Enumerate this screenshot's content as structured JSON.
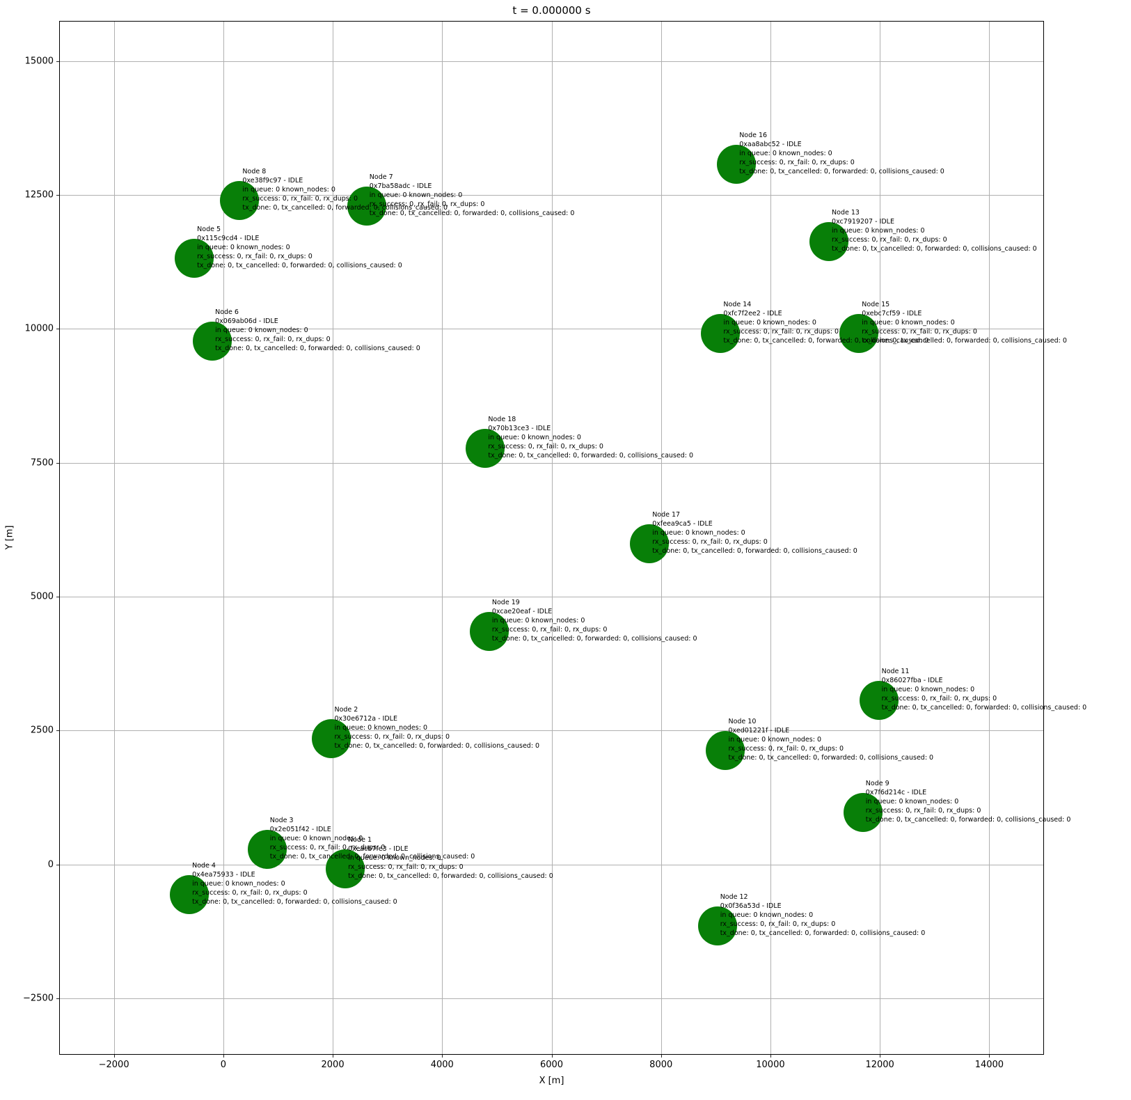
{
  "chart_data": {
    "type": "scatter",
    "title": "t = 0.000000 s",
    "xlabel": "X [m]",
    "ylabel": "Y [m]",
    "xlim": [
      -3000,
      15000
    ],
    "ylim": [
      -3550,
      15750
    ],
    "xticks": [
      -2000,
      0,
      2000,
      4000,
      6000,
      8000,
      10000,
      12000,
      14000
    ],
    "yticks": [
      -2500,
      0,
      2500,
      5000,
      7500,
      10000,
      12500,
      15000
    ],
    "grid": true,
    "legend": false,
    "marker": {
      "color": "#087f08",
      "radius_px": 28
    },
    "nodes": [
      {
        "name": "Node 1",
        "id": "0xeacb7fe3",
        "status": "IDLE",
        "x": 2230,
        "y": -80,
        "lines": [
          "Node 1",
          "0xeacb7fe3 - IDLE",
          "in queue: 0 known_nodes: 0",
          "rx_success: 0, rx_fail: 0, rx_dups: 0",
          "tx_done: 0, tx_cancelled: 0, forwarded: 0, collisions_caused: 0"
        ]
      },
      {
        "name": "Node 2",
        "id": "0x30e6712a",
        "status": "IDLE",
        "x": 1980,
        "y": 2350,
        "lines": [
          "Node 2",
          "0x30e6712a - IDLE",
          "in queue: 0 known_nodes: 0",
          "rx_success: 0, rx_fail: 0, rx_dups: 0",
          "tx_done: 0, tx_cancelled: 0, forwarded: 0, collisions_caused: 0"
        ]
      },
      {
        "name": "Node 3",
        "id": "0x2e051f42",
        "status": "IDLE",
        "x": 800,
        "y": 290,
        "lines": [
          "Node 3",
          "0x2e051f42 - IDLE",
          "in queue: 0 known_nodes: 0",
          "rx_success: 0, rx_fail: 0, rx_dups: 0",
          "tx_done: 0, tx_cancelled: 0, forwarded: 0, collisions_caused: 0"
        ]
      },
      {
        "name": "Node 4",
        "id": "0x4ea75933",
        "status": "IDLE",
        "x": -620,
        "y": -560,
        "lines": [
          "Node 4",
          "0x4ea75933 - IDLE",
          "in queue: 0 known_nodes: 0",
          "rx_success: 0, rx_fail: 0, rx_dups: 0",
          "tx_done: 0, tx_cancelled: 0, forwarded: 0, collisions_caused: 0"
        ]
      },
      {
        "name": "Node 5",
        "id": "0x115c9cd4",
        "status": "IDLE",
        "x": -530,
        "y": 11320,
        "lines": [
          "Node 5",
          "0x115c9cd4 - IDLE",
          "in queue: 0 known_nodes: 0",
          "rx_success: 0, rx_fail: 0, rx_dups: 0",
          "tx_done: 0, tx_cancelled: 0, forwarded: 0, collisions_caused: 0"
        ]
      },
      {
        "name": "Node 6",
        "id": "0x069ab06d",
        "status": "IDLE",
        "x": -200,
        "y": 9770,
        "lines": [
          "Node 6",
          "0x069ab06d - IDLE",
          "in queue: 0 known_nodes: 0",
          "rx_success: 0, rx_fail: 0, rx_dups: 0",
          "tx_done: 0, tx_cancelled: 0, forwarded: 0, collisions_caused: 0"
        ]
      },
      {
        "name": "Node 7",
        "id": "0x7ba58adc",
        "status": "IDLE",
        "x": 2620,
        "y": 12290,
        "lines": [
          "Node 7",
          "0x7ba58adc - IDLE",
          "in queue: 0 known_nodes: 0",
          "rx_success: 0, rx_fail: 0, rx_dups: 0",
          "tx_done: 0, tx_cancelled: 0, forwarded: 0, collisions_caused: 0"
        ]
      },
      {
        "name": "Node 8",
        "id": "0xe38f9c97",
        "status": "IDLE",
        "x": 300,
        "y": 12400,
        "lines": [
          "Node 8",
          "0xe38f9c97 - IDLE",
          "in queue: 0 known_nodes: 0",
          "rx_success: 0, rx_fail: 0, rx_dups: 0",
          "tx_done: 0, tx_cancelled: 0, forwarded: 0, collisions_caused: 0"
        ]
      },
      {
        "name": "Node 9",
        "id": "0x7f6d214c",
        "status": "IDLE",
        "x": 11690,
        "y": 970,
        "lines": [
          "Node 9",
          "0x7f6d214c - IDLE",
          "in queue: 0 known_nodes: 0",
          "rx_success: 0, rx_fail: 0, rx_dups: 0",
          "tx_done: 0, tx_cancelled: 0, forwarded: 0, collisions_caused: 0"
        ]
      },
      {
        "name": "Node 10",
        "id": "0xed01221f",
        "status": "IDLE",
        "x": 9180,
        "y": 2130,
        "lines": [
          "Node 10",
          "0xed01221f - IDLE",
          "in queue: 0 known_nodes: 0",
          "rx_success: 0, rx_fail: 0, rx_dups: 0",
          "tx_done: 0, tx_cancelled: 0, forwarded: 0, collisions_caused: 0"
        ]
      },
      {
        "name": "Node 11",
        "id": "0x86027fba",
        "status": "IDLE",
        "x": 11980,
        "y": 3070,
        "lines": [
          "Node 11",
          "0x86027fba - IDLE",
          "in queue: 0 known_nodes: 0",
          "rx_success: 0, rx_fail: 0, rx_dups: 0",
          "tx_done: 0, tx_cancelled: 0, forwarded: 0, collisions_caused: 0"
        ]
      },
      {
        "name": "Node 12",
        "id": "0x0f36a53d",
        "status": "IDLE",
        "x": 9030,
        "y": -1140,
        "lines": [
          "Node 12",
          "0x0f36a53d - IDLE",
          "in queue: 0 known_nodes: 0",
          "rx_success: 0, rx_fail: 0, rx_dups: 0",
          "tx_done: 0, tx_cancelled: 0, forwarded: 0, collisions_caused: 0"
        ]
      },
      {
        "name": "Node 13",
        "id": "0xc7919207",
        "status": "IDLE",
        "x": 11070,
        "y": 11630,
        "lines": [
          "Node 13",
          "0xc7919207 - IDLE",
          "in queue: 0 known_nodes: 0",
          "rx_success: 0, rx_fail: 0, rx_dups: 0",
          "tx_done: 0, tx_cancelled: 0, forwarded: 0, collisions_caused: 0"
        ]
      },
      {
        "name": "Node 14",
        "id": "0xfc7f2ee2",
        "status": "IDLE",
        "x": 9090,
        "y": 9920,
        "lines": [
          "Node 14",
          "0xfc7f2ee2 - IDLE",
          "in queue: 0 known_nodes: 0",
          "rx_success: 0, rx_fail: 0, rx_dups: 0",
          "tx_done: 0, tx_cancelled: 0, forwarded: 0, collisions_caused: 0"
        ]
      },
      {
        "name": "Node 15",
        "id": "0xebc7cf59",
        "status": "IDLE",
        "x": 11620,
        "y": 9920,
        "lines": [
          "Node 15",
          "0xebc7cf59 - IDLE",
          "in queue: 0 known_nodes: 0",
          "rx_success: 0, rx_fail: 0, rx_dups: 0",
          "tx_done: 0, tx_cancelled: 0, forwarded: 0, collisions_caused: 0"
        ]
      },
      {
        "name": "Node 16",
        "id": "0xaa8abc52",
        "status": "IDLE",
        "x": 9380,
        "y": 13070,
        "lines": [
          "Node 16",
          "0xaa8abc52 - IDLE",
          "in queue: 0 known_nodes: 0",
          "rx_success: 0, rx_fail: 0, rx_dups: 0",
          "tx_done: 0, tx_cancelled: 0, forwarded: 0, collisions_caused: 0"
        ]
      },
      {
        "name": "Node 17",
        "id": "0xfeea9ca5",
        "status": "IDLE",
        "x": 7790,
        "y": 5990,
        "lines": [
          "Node 17",
          "0xfeea9ca5 - IDLE",
          "in queue: 0 known_nodes: 0",
          "rx_success: 0, rx_fail: 0, rx_dups: 0",
          "tx_done: 0, tx_cancelled: 0, forwarded: 0, collisions_caused: 0"
        ]
      },
      {
        "name": "Node 18",
        "id": "0x70b13ce3",
        "status": "IDLE",
        "x": 4790,
        "y": 7770,
        "lines": [
          "Node 18",
          "0x70b13ce3 - IDLE",
          "in queue: 0 known_nodes: 0",
          "rx_success: 0, rx_fail: 0, rx_dups: 0",
          "tx_done: 0, tx_cancelled: 0, forwarded: 0, collisions_caused: 0"
        ]
      },
      {
        "name": "Node 19",
        "id": "0xcae20eaf",
        "status": "IDLE",
        "x": 4860,
        "y": 4350,
        "lines": [
          "Node 19",
          "0xcae20eaf - IDLE",
          "in queue: 0 known_nodes: 0",
          "rx_success: 0, rx_fail: 0, rx_dups: 0",
          "tx_done: 0, tx_cancelled: 0, forwarded: 0, collisions_caused: 0"
        ]
      }
    ]
  }
}
